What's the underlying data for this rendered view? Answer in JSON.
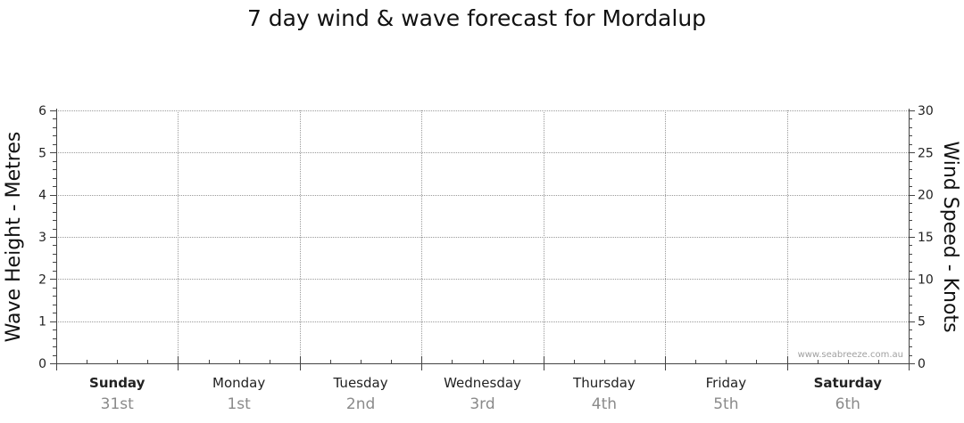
{
  "chart_data": {
    "type": "line",
    "title": "7 day wind & wave forecast for Mordalup",
    "y_left": {
      "label": "Wave Height - Metres",
      "range": [
        0,
        6
      ],
      "ticks": [
        0,
        1,
        2,
        3,
        4,
        5,
        6
      ]
    },
    "y_right": {
      "label": "Wind Speed - Knots",
      "range": [
        0,
        30
      ],
      "ticks": [
        0,
        5,
        10,
        15,
        20,
        25,
        30
      ]
    },
    "days": [
      {
        "day": "Sunday",
        "date": "31st",
        "bold": true
      },
      {
        "day": "Monday",
        "date": "1st",
        "bold": false
      },
      {
        "day": "Tuesday",
        "date": "2nd",
        "bold": false
      },
      {
        "day": "Wednesday",
        "date": "3rd",
        "bold": false
      },
      {
        "day": "Thursday",
        "date": "4th",
        "bold": false
      },
      {
        "day": "Friday",
        "date": "5th",
        "bold": false
      },
      {
        "day": "Saturday",
        "date": "6th",
        "bold": true
      }
    ],
    "series": [],
    "grid": true,
    "watermark": "www.seabreeze.com.au"
  }
}
